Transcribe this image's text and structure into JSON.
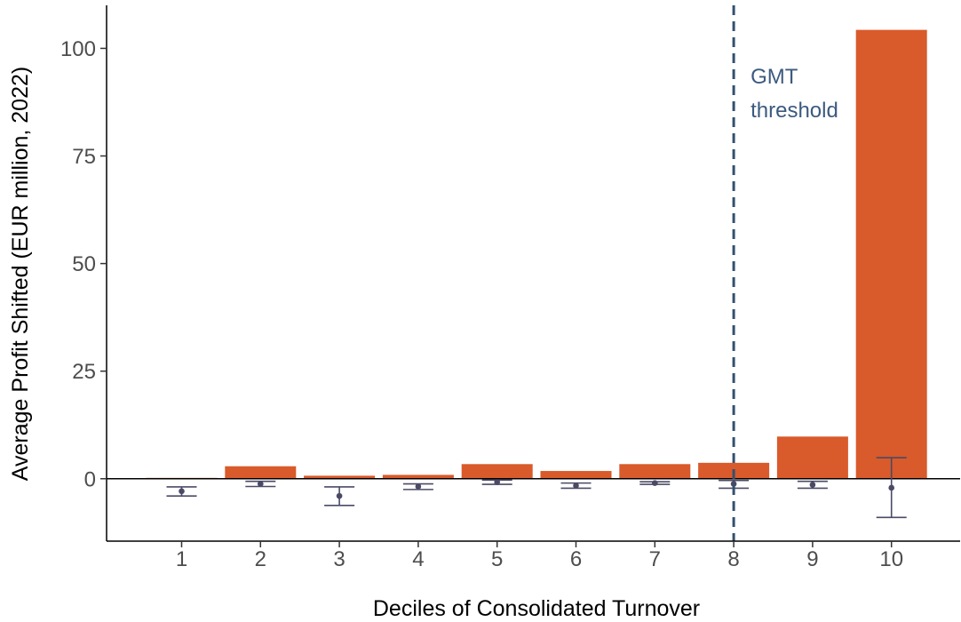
{
  "chart_data": {
    "type": "bar",
    "title": "",
    "xlabel": "Deciles of Consolidated Turnover",
    "ylabel": "Average Profit Shifted (EUR million, 2022)",
    "categories": [
      "1",
      "2",
      "3",
      "4",
      "5",
      "6",
      "7",
      "8",
      "9",
      "10"
    ],
    "ylim": [
      -14.5,
      110
    ],
    "y_ticks": [
      0,
      25,
      50,
      75,
      100
    ],
    "y_tick_labels": [
      "0",
      "25",
      "50",
      "75",
      "100"
    ],
    "grid": false,
    "legend": "none",
    "series": [
      {
        "kind": "bar",
        "values": [
          0.2,
          2.9,
          0.7,
          0.9,
          3.4,
          1.8,
          3.4,
          3.7,
          9.8,
          104.3
        ]
      },
      {
        "kind": "point-errorbar",
        "values": [
          -2.9,
          -1.2,
          -4.0,
          -1.8,
          -0.8,
          -1.6,
          -1.0,
          -1.2,
          -1.4,
          -2.1
        ],
        "lower": [
          -4.0,
          -1.8,
          -6.2,
          -2.5,
          -1.3,
          -2.2,
          -1.3,
          -2.2,
          -2.2,
          -9.0
        ],
        "upper": [
          -1.9,
          -0.6,
          -1.9,
          -1.2,
          -0.3,
          -1.0,
          -0.7,
          -0.4,
          -0.6,
          4.9
        ]
      }
    ],
    "annotations": [
      {
        "type": "vline",
        "x": "8",
        "style": "dashed",
        "label_lines": [
          "GMT",
          "threshold"
        ]
      }
    ],
    "colors": {
      "bar": "#d95a2b",
      "errorbar": "#4a4a66",
      "vline": "#34506e",
      "annotation_text": "#3c5a7f",
      "axis": "#000000",
      "tick_text": "#4d4d4d"
    }
  }
}
